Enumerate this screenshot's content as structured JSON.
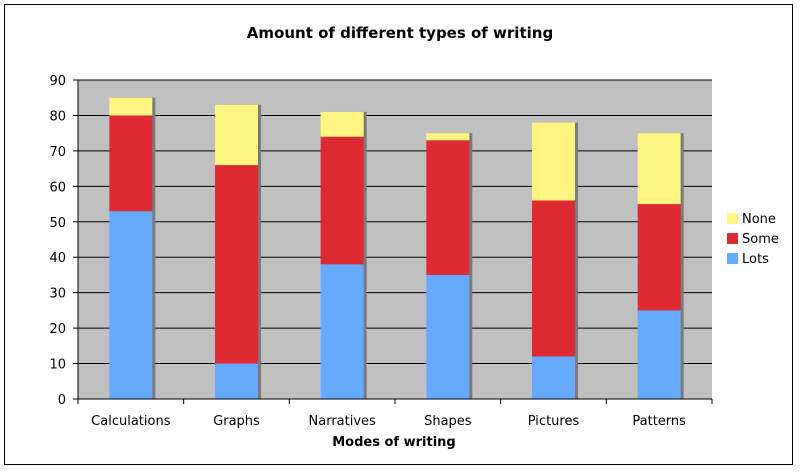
{
  "chart_data": {
    "type": "bar",
    "stacked": true,
    "title": "Amount of different types of writing",
    "xlabel": "Modes of writing",
    "ylabel": "",
    "ylim": [
      0,
      90
    ],
    "yticks": [
      0,
      10,
      20,
      30,
      40,
      50,
      60,
      70,
      80,
      90
    ],
    "grid": true,
    "legend_position": "right",
    "plot_background": "#c0c0c0",
    "categories": [
      "Calculations",
      "Graphs",
      "Narratives",
      "Shapes",
      "Pictures",
      "Patterns"
    ],
    "series": [
      {
        "name": "Lots",
        "color": "#66aaff",
        "values": [
          53,
          10,
          38,
          35,
          12,
          25
        ]
      },
      {
        "name": "Some",
        "color": "#dd2a33",
        "values": [
          27,
          56,
          36,
          38,
          44,
          30
        ]
      },
      {
        "name": "None",
        "color": "#fff580",
        "values": [
          5,
          17,
          7,
          2,
          22,
          20
        ]
      }
    ],
    "legend_order": [
      "None",
      "Some",
      "Lots"
    ]
  }
}
